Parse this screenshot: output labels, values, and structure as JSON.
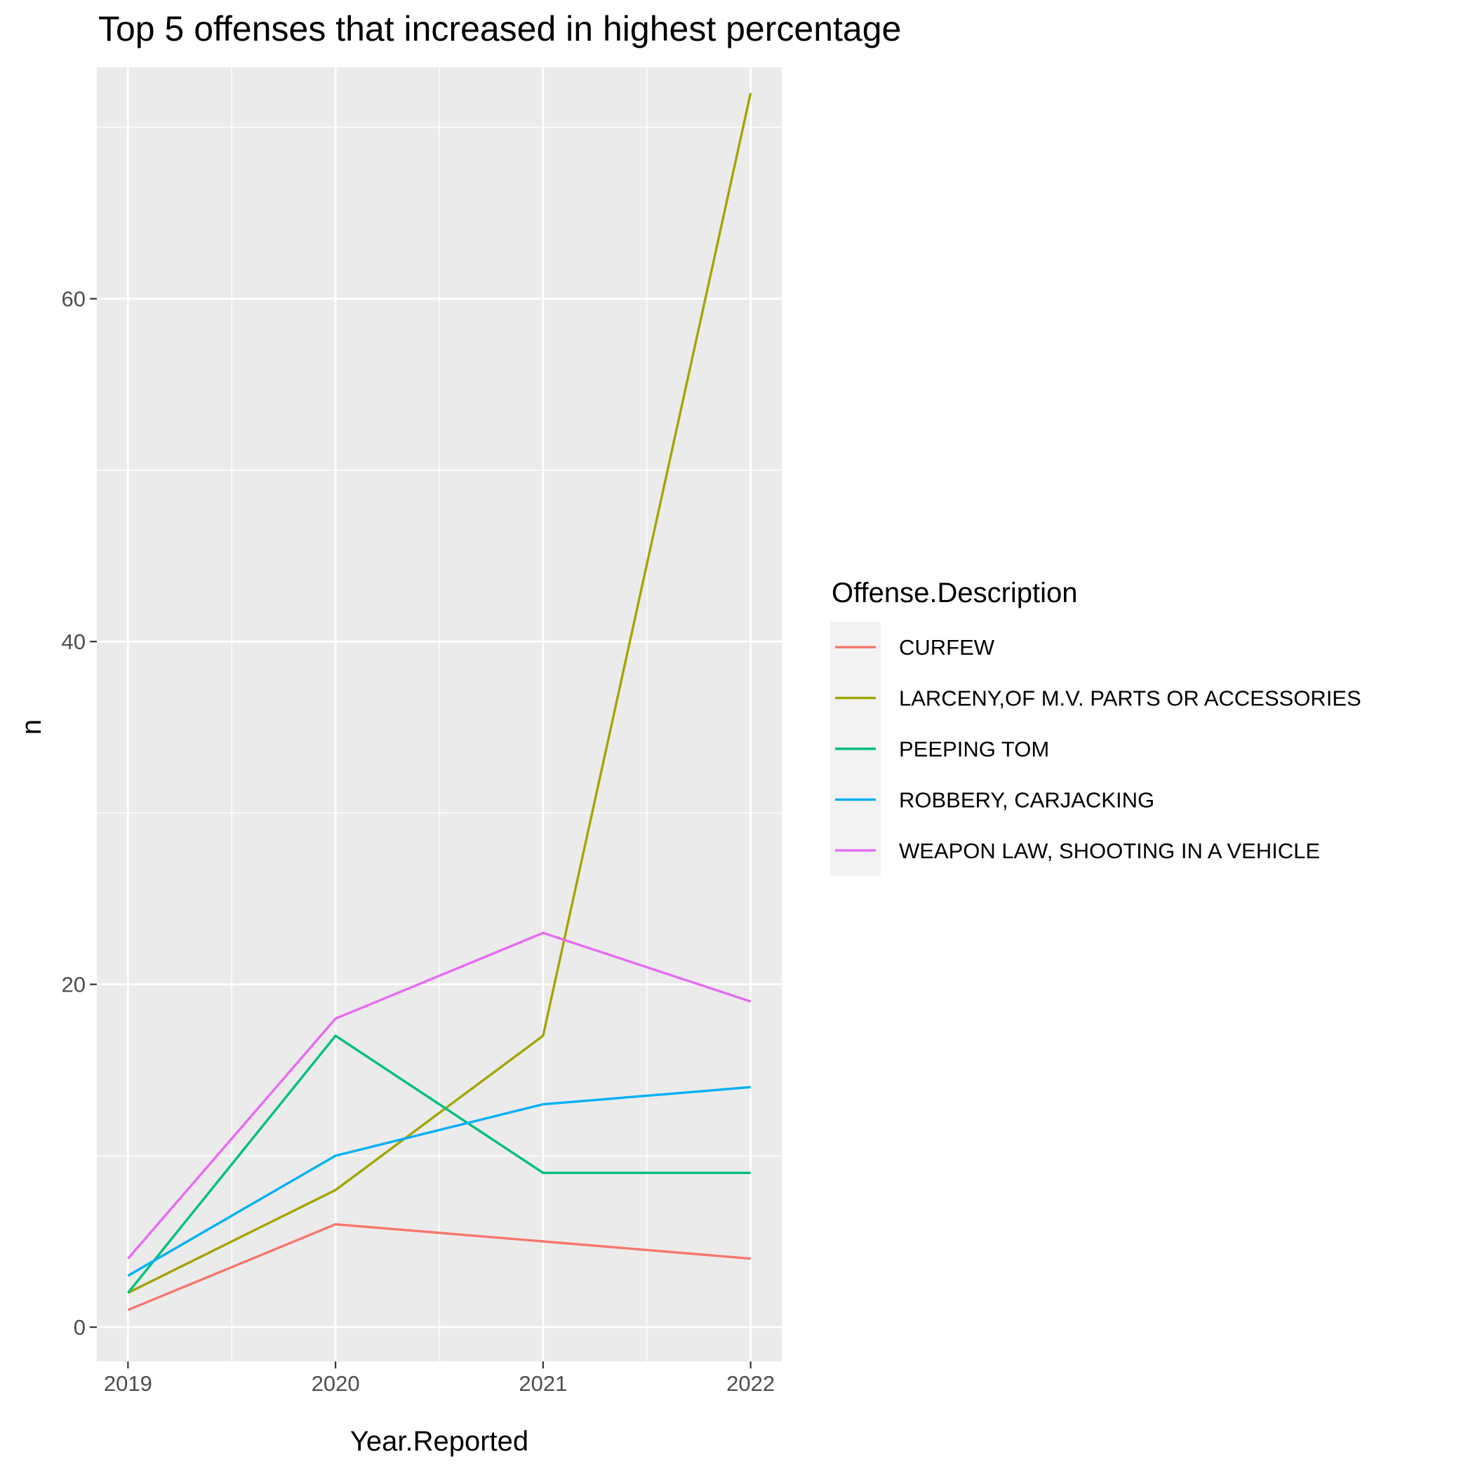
{
  "chart_data": {
    "type": "line",
    "title": "Top 5 offenses that increased in highest percentage",
    "xlabel": "Year.Reported",
    "ylabel": "n",
    "x": [
      2019,
      2020,
      2021,
      2022
    ],
    "x_tick_labels": [
      "2019",
      "2020",
      "2021",
      "2022"
    ],
    "y_ticks": [
      0,
      20,
      40,
      60
    ],
    "y_tick_labels": [
      "0",
      "20",
      "40",
      "60"
    ],
    "xlim": [
      2018.85,
      2022.15
    ],
    "ylim": [
      -2.0,
      73.5
    ],
    "grid": true,
    "legend_position": "right",
    "legend_title": "Offense.Description",
    "series": [
      {
        "name": "CURFEW",
        "color": "#F8766D",
        "values": [
          1,
          6,
          5,
          4
        ]
      },
      {
        "name": "LARCENY,OF M.V. PARTS OR ACCESSORIES",
        "color": "#A3A500",
        "values": [
          2,
          8,
          17,
          72
        ]
      },
      {
        "name": "PEEPING TOM",
        "color": "#00BF7D",
        "values": [
          2,
          17,
          9,
          9
        ]
      },
      {
        "name": "ROBBERY, CARJACKING",
        "color": "#00B0F6",
        "values": [
          3,
          10,
          13,
          14
        ]
      },
      {
        "name": "WEAPON LAW, SHOOTING IN A VEHICLE",
        "color": "#E76BF3",
        "values": [
          4,
          18,
          23,
          19
        ]
      }
    ]
  }
}
